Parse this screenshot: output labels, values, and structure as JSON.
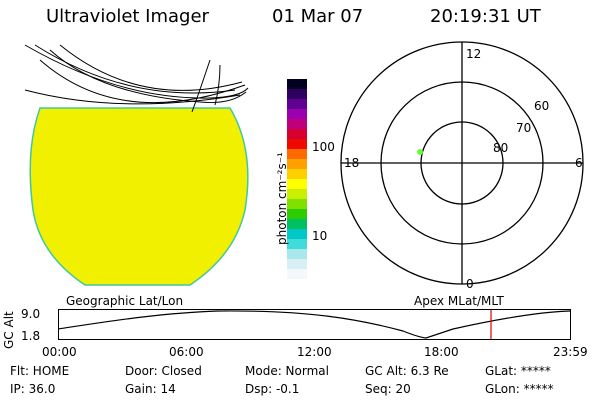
{
  "header": {
    "instrument": "Ultraviolet Imager",
    "date": "01 Mar 07",
    "time": "20:19:31 UT"
  },
  "image_panel": {
    "fill_color": "#f0f000",
    "edge_color": "#40c8a0"
  },
  "colorbar": {
    "unit_label": "photon cm⁻²s⁻¹",
    "ticks": [
      "100",
      "10"
    ],
    "colors": [
      "#000020",
      "#300060",
      "#600090",
      "#9a00b0",
      "#c0007a",
      "#d80030",
      "#ee0a00",
      "#ff6a00",
      "#ffa000",
      "#ffd000",
      "#ffff00",
      "#c8f000",
      "#80e000",
      "#2ccc00",
      "#00c060",
      "#00c8c8",
      "#40dcdc",
      "#a8e8ec",
      "#d8f0f4",
      "#f4f8fa"
    ]
  },
  "polar_plot": {
    "labels": {
      "top": "12",
      "bottom": "0",
      "left": "18",
      "right": "6"
    },
    "rings": [
      "60",
      "70",
      "80"
    ],
    "marker_color": "#66ff33"
  },
  "footer_labels": {
    "left": "Geographic Lat/Lon",
    "right": "Apex MLat/MLT"
  },
  "gc_alt_plot": {
    "axis_label": "GC Alt",
    "y_ticks": [
      "9.0",
      "1.8"
    ],
    "x_ticks": [
      "00:00",
      "06:00",
      "12:00",
      "18:00",
      "23:59"
    ],
    "current_time_color": "#e00000"
  },
  "status": {
    "flt": "Flt: HOME",
    "ip": "IP: 36.0",
    "door": "Door: Closed",
    "gain": "Gain: 14",
    "mode": "Mode: Normal",
    "dsp": "Dsp:   -0.1",
    "gc_alt": "GC Alt: 6.3 Re",
    "seq": "Seq: 20",
    "glat": "GLat: *****",
    "glon": "GLon: *****"
  }
}
